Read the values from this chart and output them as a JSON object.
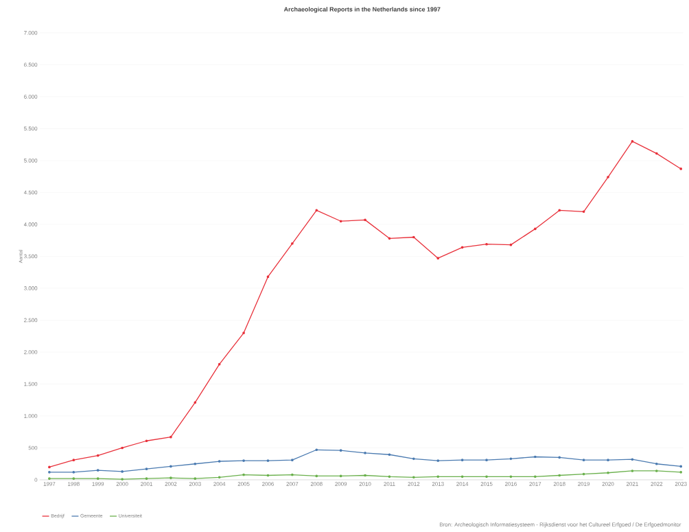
{
  "chart_data": {
    "type": "line",
    "title": "Archaeological Reports in the Netherlands since 1997",
    "ylabel": "Aantal",
    "categories": [
      "1997",
      "1998",
      "1999",
      "2000",
      "2001",
      "2002",
      "2003",
      "2004",
      "2005",
      "2006",
      "2007",
      "2008",
      "2009",
      "2010",
      "2011",
      "2012",
      "2013",
      "2014",
      "2015",
      "2016",
      "2017",
      "2018",
      "2019",
      "2020",
      "2021",
      "2022",
      "2023"
    ],
    "series": [
      {
        "name": "Bedrijf",
        "color": "#e8303a",
        "values": [
          200,
          310,
          380,
          500,
          610,
          670,
          1210,
          1810,
          2300,
          3180,
          3700,
          4220,
          4050,
          4070,
          3780,
          3800,
          3470,
          3640,
          3690,
          3680,
          3930,
          4220,
          4200,
          4740,
          5300,
          5110,
          4870
        ]
      },
      {
        "name": "Gemeente",
        "color": "#4a7ab0",
        "values": [
          120,
          120,
          150,
          130,
          170,
          210,
          250,
          290,
          300,
          300,
          310,
          470,
          460,
          420,
          395,
          330,
          300,
          310,
          310,
          330,
          360,
          350,
          310,
          310,
          320,
          250,
          210
        ]
      },
      {
        "name": "Universiteit",
        "color": "#6ab04c",
        "values": [
          20,
          20,
          20,
          10,
          20,
          30,
          20,
          40,
          80,
          70,
          80,
          60,
          60,
          70,
          50,
          40,
          50,
          50,
          50,
          50,
          50,
          70,
          90,
          110,
          140,
          140,
          120
        ]
      }
    ],
    "ylim": [
      0,
      7000
    ],
    "yticks": [
      0,
      500,
      {
        "value": 1000,
        "label": "1.000"
      },
      {
        "value": 1500,
        "label": "1.500"
      },
      {
        "value": 2000,
        "label": "2.000"
      },
      {
        "value": 2500,
        "label": "2.500"
      },
      {
        "value": 3000,
        "label": "3.000"
      },
      {
        "value": 3500,
        "label": "3.500"
      },
      {
        "value": 4000,
        "label": "4.000"
      },
      {
        "value": 4500,
        "label": "4.500"
      },
      {
        "value": 5000,
        "label": "5.000"
      },
      {
        "value": 5500,
        "label": "5.500"
      },
      {
        "value": 6000,
        "label": "6.000"
      },
      {
        "value": 6500,
        "label": "6.500"
      },
      {
        "value": 7000,
        "label": "7.000"
      }
    ],
    "grid": "y",
    "legend": "bottom left",
    "marker": "circle",
    "line_style": "solid",
    "annotations": [
      "Bron: Archeologisch Informatiesysteem - Rijksdienst voor het Cultureel Erfgoed / De Erfgoedmonitor"
    ]
  }
}
